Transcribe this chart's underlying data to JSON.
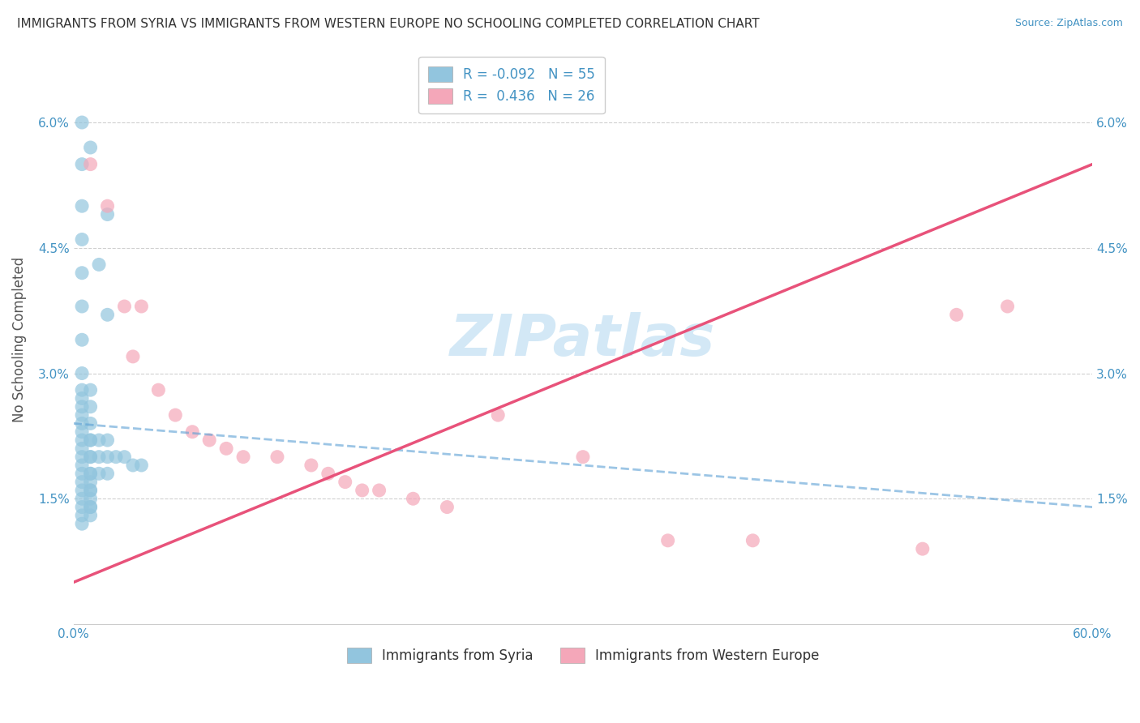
{
  "title": "IMMIGRANTS FROM SYRIA VS IMMIGRANTS FROM WESTERN EUROPE NO SCHOOLING COMPLETED CORRELATION CHART",
  "source": "Source: ZipAtlas.com",
  "xlim": [
    0.0,
    0.6
  ],
  "ylim": [
    0.0,
    0.068
  ],
  "ylabel": "No Schooling Completed",
  "legend1_label": "Immigrants from Syria",
  "legend2_label": "Immigrants from Western Europe",
  "r1": "-0.092",
  "n1": "55",
  "r2": "0.436",
  "n2": "26",
  "blue_color": "#92c5de",
  "pink_color": "#f4a7b9",
  "blue_line_color": "#5a9fd4",
  "pink_line_color": "#e8527a",
  "y_ticks": [
    0.015,
    0.03,
    0.045,
    0.06
  ],
  "y_tick_labels": [
    "1.5%",
    "3.0%",
    "4.5%",
    "6.0%"
  ],
  "x_ticks": [
    0.0,
    0.6
  ],
  "x_tick_labels": [
    "0.0%",
    "60.0%"
  ],
  "blue_scatter_x": [
    0.01,
    0.02,
    0.015,
    0.02,
    0.005,
    0.005,
    0.005,
    0.005,
    0.005,
    0.005,
    0.005,
    0.005,
    0.005,
    0.005,
    0.005,
    0.005,
    0.005,
    0.005,
    0.005,
    0.005,
    0.005,
    0.005,
    0.005,
    0.005,
    0.005,
    0.005,
    0.005,
    0.005,
    0.005,
    0.01,
    0.01,
    0.01,
    0.01,
    0.01,
    0.01,
    0.01,
    0.01,
    0.01,
    0.01,
    0.01,
    0.01,
    0.01,
    0.01,
    0.01,
    0.01,
    0.015,
    0.015,
    0.015,
    0.02,
    0.02,
    0.02,
    0.025,
    0.03,
    0.035,
    0.04
  ],
  "blue_scatter_y": [
    0.057,
    0.049,
    0.043,
    0.037,
    0.06,
    0.055,
    0.05,
    0.046,
    0.042,
    0.038,
    0.034,
    0.03,
    0.028,
    0.027,
    0.026,
    0.025,
    0.024,
    0.023,
    0.022,
    0.021,
    0.02,
    0.019,
    0.018,
    0.017,
    0.016,
    0.015,
    0.014,
    0.013,
    0.012,
    0.028,
    0.026,
    0.024,
    0.022,
    0.02,
    0.018,
    0.017,
    0.016,
    0.015,
    0.014,
    0.013,
    0.022,
    0.02,
    0.018,
    0.016,
    0.014,
    0.022,
    0.02,
    0.018,
    0.022,
    0.02,
    0.018,
    0.02,
    0.02,
    0.019,
    0.019
  ],
  "pink_scatter_x": [
    0.01,
    0.02,
    0.03,
    0.04,
    0.035,
    0.05,
    0.06,
    0.07,
    0.08,
    0.09,
    0.1,
    0.12,
    0.14,
    0.15,
    0.16,
    0.17,
    0.18,
    0.2,
    0.22,
    0.25,
    0.3,
    0.35,
    0.4,
    0.5,
    0.52,
    0.55
  ],
  "pink_scatter_y": [
    0.055,
    0.05,
    0.038,
    0.038,
    0.032,
    0.028,
    0.025,
    0.023,
    0.022,
    0.021,
    0.02,
    0.02,
    0.019,
    0.018,
    0.017,
    0.016,
    0.016,
    0.015,
    0.014,
    0.025,
    0.02,
    0.01,
    0.01,
    0.009,
    0.037,
    0.038
  ],
  "blue_line_x": [
    0.0,
    0.6
  ],
  "blue_line_y": [
    0.024,
    0.014
  ],
  "pink_line_x": [
    0.0,
    0.6
  ],
  "pink_line_y": [
    0.005,
    0.055
  ],
  "watermark_text": "ZIPatlas",
  "watermark_color": "#cce5f5",
  "grid_color": "#d0d0d0",
  "spine_color": "#cccccc",
  "tick_label_color": "#4393c3",
  "title_color": "#333333",
  "ylabel_color": "#555555",
  "legend_edge_color": "#cccccc",
  "bottom_legend_color": "#333333"
}
